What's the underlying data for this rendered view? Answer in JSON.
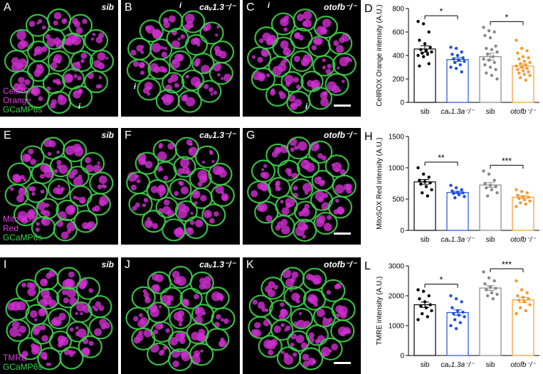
{
  "rows": [
    {
      "panels": [
        {
          "label": "A",
          "genotype": "sib",
          "stain_magenta": [
            "CellROX",
            "Orange"
          ],
          "stain_green": "GCaMP6s",
          "markers": [
            "i"
          ]
        },
        {
          "label": "B",
          "genotype": "caᵥ1.3⁻/⁻",
          "markers": [
            "i",
            "i"
          ]
        },
        {
          "label": "C",
          "genotype": "otofb⁻/⁻",
          "markers": [
            "i",
            "i"
          ]
        }
      ],
      "chart_label": "D"
    },
    {
      "panels": [
        {
          "label": "E",
          "genotype": "sib",
          "stain_magenta": [
            "MitoSOX",
            "Red"
          ],
          "stain_green": "GCaMP6s"
        },
        {
          "label": "F",
          "genotype": "caᵥ1.3⁻/⁻"
        },
        {
          "label": "G",
          "genotype": "otofb⁻/⁻"
        }
      ],
      "chart_label": "H"
    },
    {
      "panels": [
        {
          "label": "I",
          "genotype": "sib",
          "stain_magenta": [
            "TMRE"
          ],
          "stain_green": "GCaMP6s"
        },
        {
          "label": "J",
          "genotype": "caᵥ1.3⁻/⁻"
        },
        {
          "label": "K",
          "genotype": "otofb⁻/⁻"
        }
      ],
      "chart_label": "L"
    }
  ],
  "chart_data": [
    {
      "type": "bar",
      "ylabel": "CellROX Orange intensity (A.U.)",
      "ylim": [
        0,
        800
      ],
      "yticks": [
        "0",
        "200",
        "400",
        "600",
        "800"
      ],
      "categories": [
        "sib",
        "caᵥ1.3a⁻/⁻",
        "sib",
        "otofb⁻/⁻"
      ],
      "values": [
        455,
        365,
        390,
        310
      ],
      "colors": [
        "#000000",
        "#1f4fe0",
        "#888888",
        "#f39a2e"
      ],
      "significance": [
        {
          "between": [
            0,
            1
          ],
          "label": "*"
        },
        {
          "between": [
            2,
            3
          ],
          "label": "*"
        }
      ],
      "points": [
        [
          690,
          670,
          600,
          530,
          500,
          470,
          450,
          440,
          430,
          420,
          410,
          400,
          390,
          330,
          310
        ],
        [
          470,
          460,
          430,
          410,
          400,
          380,
          370,
          360,
          350,
          340,
          320,
          300,
          290,
          260
        ],
        [
          640,
          610,
          600,
          570,
          550,
          480,
          460,
          450,
          430,
          410,
          390,
          370,
          360,
          340,
          320,
          300,
          280,
          250,
          230,
          200
        ],
        [
          530,
          460,
          440,
          420,
          390,
          380,
          370,
          350,
          340,
          330,
          320,
          310,
          300,
          290,
          280,
          270,
          260,
          250,
          240,
          230,
          210,
          190
        ]
      ]
    },
    {
      "type": "bar",
      "ylabel": "MitoSOX Red intensity (A.U.)",
      "ylim": [
        0,
        1500
      ],
      "yticks": [
        "0",
        "500",
        "1000",
        "1500"
      ],
      "categories": [
        "sib",
        "caᵥ1.3a⁻/⁻",
        "sib",
        "otofb⁻/⁻"
      ],
      "values": [
        775,
        605,
        725,
        530
      ],
      "colors": [
        "#000000",
        "#1f4fe0",
        "#888888",
        "#f39a2e"
      ],
      "significance": [
        {
          "between": [
            0,
            1
          ],
          "label": "**"
        },
        {
          "between": [
            2,
            3
          ],
          "label": "***"
        }
      ],
      "points": [
        [
          1000,
          900,
          850,
          800,
          780,
          760,
          740,
          700,
          650,
          600,
          550
        ],
        [
          720,
          680,
          650,
          630,
          610,
          600,
          590,
          570,
          540,
          520
        ],
        [
          950,
          900,
          800,
          750,
          720,
          700,
          680,
          650,
          600,
          550
        ],
        [
          650,
          620,
          600,
          560,
          540,
          530,
          510,
          490,
          470,
          440,
          420,
          380
        ]
      ]
    },
    {
      "type": "bar",
      "ylabel": "TMRE intensity (A.U.)",
      "ylim": [
        0,
        3000
      ],
      "yticks": [
        "0",
        "1000",
        "2000",
        "3000"
      ],
      "categories": [
        "sib",
        "caᵥ1.3a⁻/⁻",
        "sib",
        "otofb⁻/⁻"
      ],
      "values": [
        1700,
        1440,
        2260,
        1860
      ],
      "colors": [
        "#000000",
        "#1f4fe0",
        "#888888",
        "#f39a2e"
      ],
      "significance": [
        {
          "between": [
            0,
            1
          ],
          "label": "*"
        },
        {
          "between": [
            2,
            3
          ],
          "label": "***"
        }
      ],
      "points": [
        [
          2200,
          2150,
          2000,
          1900,
          1800,
          1700,
          1650,
          1600,
          1500,
          1400,
          1300,
          1200
        ],
        [
          2000,
          1900,
          1800,
          1600,
          1500,
          1450,
          1400,
          1350,
          1300,
          1200,
          1100,
          1000,
          900
        ],
        [
          2800,
          2600,
          2500,
          2400,
          2300,
          2250,
          2200,
          2100,
          2050,
          2000,
          1900
        ],
        [
          2500,
          2200,
          2100,
          2000,
          1950,
          1900,
          1850,
          1800,
          1700,
          1600,
          1500,
          1400
        ]
      ]
    }
  ]
}
